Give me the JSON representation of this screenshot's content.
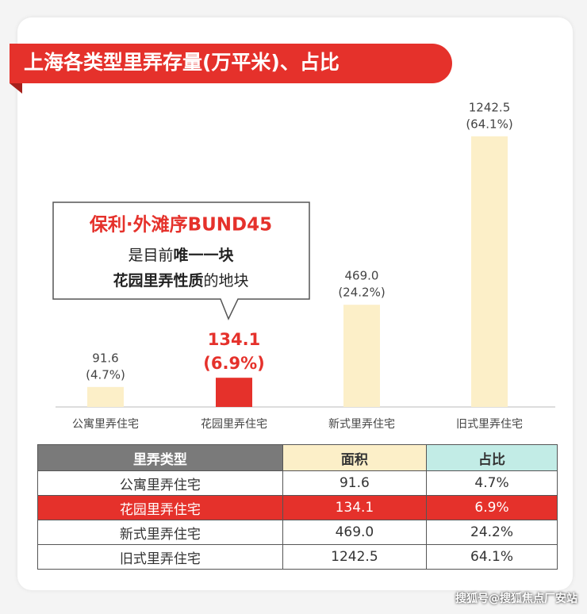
{
  "chart_data": {
    "type": "bar",
    "title": "上海各类型里弄存量(万平米)、占比",
    "categories": [
      "公寓里弄住宅",
      "花园里弄住宅",
      "新式里弄住宅",
      "旧式里弄住宅"
    ],
    "values": [
      91.6,
      134.1,
      469.0,
      1242.5
    ],
    "value_labels": [
      "91.6",
      "134.1",
      "469.0",
      "1242.5"
    ],
    "shares": [
      4.7,
      6.9,
      24.2,
      64.1
    ],
    "share_labels": [
      "(4.7%)",
      "(6.9%)",
      "(24.2%)",
      "(64.1%)"
    ],
    "colors": [
      "#fcefc8",
      "#e5312b",
      "#fcefc8",
      "#fcefc8"
    ],
    "highlight_color": "#e5312b",
    "ylim": [
      0,
      1300
    ],
    "annotation": {
      "heading": "保利·外滩序BUND45",
      "lines": [
        [
          "是目前",
          "唯一一块"
        ],
        [
          "花园里弄性质",
          "的地块"
        ]
      ]
    }
  },
  "table": {
    "header": [
      "里弄类型",
      "面积",
      "占比"
    ],
    "rows": [
      [
        "公寓里弄住宅",
        "91.6",
        "4.7%"
      ],
      [
        "花园里弄住宅",
        "134.1",
        "6.9%"
      ],
      [
        "新式里弄住宅",
        "469.0",
        "24.2%"
      ],
      [
        "旧式里弄住宅",
        "1242.5",
        "64.1%"
      ]
    ]
  },
  "watermark": "搜狐号@搜狐焦点厂安站"
}
